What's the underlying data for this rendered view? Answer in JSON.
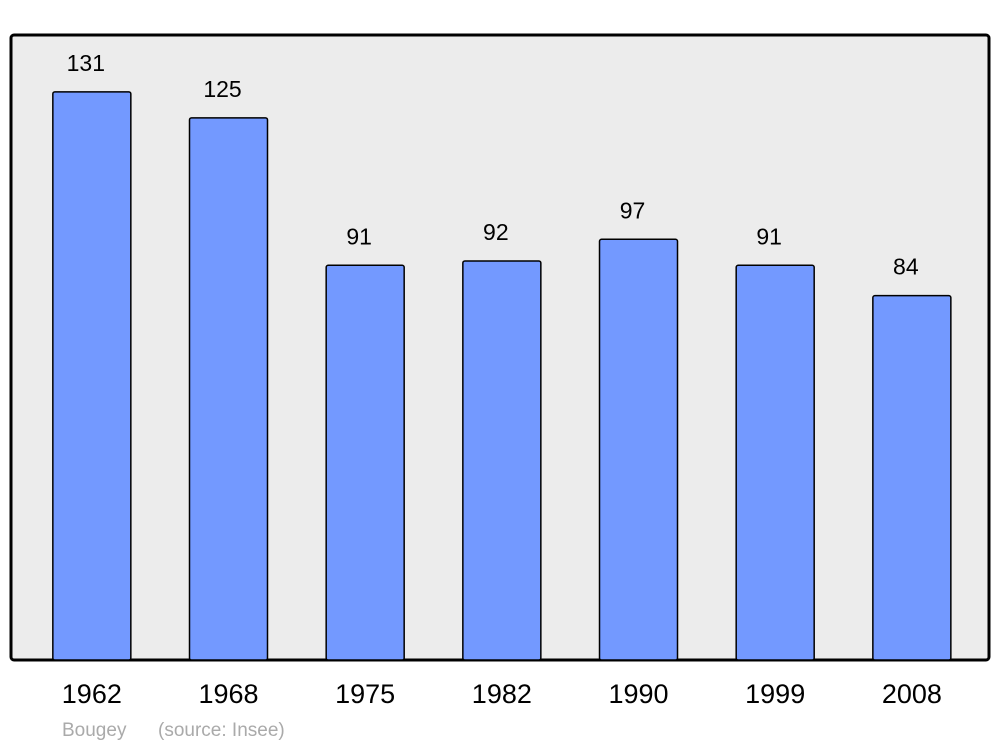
{
  "chart_data": {
    "type": "bar",
    "categories": [
      "1962",
      "1968",
      "1975",
      "1982",
      "1990",
      "1999",
      "2008"
    ],
    "values": [
      131,
      125,
      91,
      92,
      97,
      91,
      84
    ],
    "color": "#7399ff",
    "caption": {
      "place": "Bougey",
      "source": "(source: Insee)"
    }
  }
}
